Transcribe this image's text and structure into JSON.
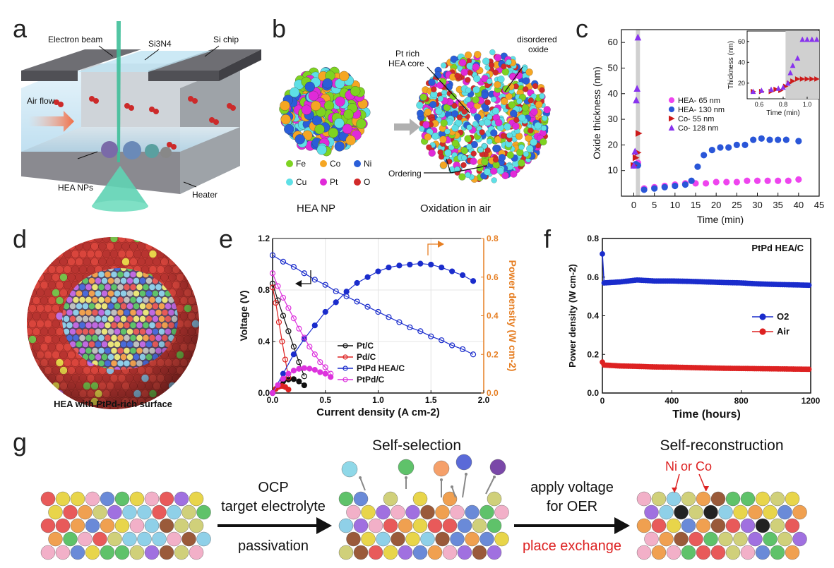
{
  "panels": {
    "a": "a",
    "b": "b",
    "c": "c",
    "d": "d",
    "e": "e",
    "f": "f",
    "g": "g"
  },
  "panel_a": {
    "electron_beam": "Electron beam",
    "si3n4": "Si3N4",
    "si_chip": "Si chip",
    "air_flow": "Air flow",
    "hea_nps": "HEA NPs",
    "heater": "Heater",
    "colors": {
      "chip": "#6e6e73",
      "glass": "#cde8f4",
      "beam": "#3fbf99",
      "particle": "#cc2a2a"
    }
  },
  "panel_b": {
    "caption_left": "HEA NP",
    "caption_right": "Oxidation in air",
    "label_core": "Pt rich HEA core",
    "label_oxide": "disordered oxide",
    "label_ordering": "Ordering",
    "legend": [
      {
        "name": "Fe",
        "color": "#7ed321"
      },
      {
        "name": "Co",
        "color": "#f5a623"
      },
      {
        "name": "Ni",
        "color": "#2a5ed8"
      },
      {
        "name": "Cu",
        "color": "#5ee0e6"
      },
      {
        "name": "Pt",
        "color": "#e02ad8"
      },
      {
        "name": "O",
        "color": "#d22a2a"
      }
    ]
  },
  "panel_d": {
    "caption": "HEA with PtPd-rich surface"
  },
  "chart_data": [
    {
      "id": "c",
      "type": "scatter",
      "xlabel": "Time (min)",
      "ylabel": "Oxide thickness (nm)",
      "xlim": [
        -3,
        45
      ],
      "ylim": [
        0,
        65
      ],
      "xticks": [
        0,
        5,
        10,
        15,
        20,
        25,
        30,
        35,
        40,
        45
      ],
      "yticks": [
        10,
        20,
        30,
        40,
        50,
        60
      ],
      "shaded_x": [
        0.5,
        1.5
      ],
      "series": [
        {
          "name": "HEA- 65 nm",
          "color": "#ee44ee",
          "marker": "circle",
          "points": [
            [
              0,
              12
            ],
            [
              0.5,
              12.5
            ],
            [
              1,
              13
            ],
            [
              2.5,
              3
            ],
            [
              5,
              3.5
            ],
            [
              7.5,
              4
            ],
            [
              10,
              4.5
            ],
            [
              12.5,
              5
            ],
            [
              15,
              5
            ],
            [
              17.5,
              5
            ],
            [
              20,
              5.5
            ],
            [
              22.5,
              5.5
            ],
            [
              25,
              5.5
            ],
            [
              27.5,
              6
            ],
            [
              30,
              6
            ],
            [
              32.5,
              6
            ],
            [
              35,
              6
            ],
            [
              37.5,
              6
            ],
            [
              40,
              6.5
            ]
          ]
        },
        {
          "name": "HEA- 130 nm",
          "color": "#2a56d8",
          "marker": "circle",
          "points": [
            [
              0,
              12
            ],
            [
              0.5,
              12.5
            ],
            [
              1,
              12
            ],
            [
              2.5,
              2.5
            ],
            [
              5,
              3
            ],
            [
              7.5,
              3.5
            ],
            [
              10,
              4
            ],
            [
              12.5,
              4.5
            ],
            [
              14,
              6
            ],
            [
              15.5,
              11.5
            ],
            [
              17,
              16
            ],
            [
              19,
              18
            ],
            [
              21,
              19
            ],
            [
              23,
              19
            ],
            [
              25,
              20
            ],
            [
              27,
              20
            ],
            [
              29,
              22
            ],
            [
              31,
              22.5
            ],
            [
              33,
              22
            ],
            [
              35,
              22
            ],
            [
              37,
              22
            ],
            [
              40,
              21.5
            ]
          ]
        },
        {
          "name": "Co- 55 nm",
          "color": "#cc1a1a",
          "marker": "triangle-right",
          "points": [
            [
              0,
              12
            ],
            [
              0.5,
              15
            ],
            [
              1,
              17
            ],
            [
              1.2,
              24.5
            ]
          ]
        },
        {
          "name": "Co- 128 nm",
          "color": "#8833ee",
          "marker": "triangle-up",
          "points": [
            [
              0,
              12
            ],
            [
              0.3,
              17.5
            ],
            [
              0.6,
              37.5
            ],
            [
              0.8,
              42
            ],
            [
              1,
              62
            ]
          ]
        }
      ],
      "inset": {
        "xlabel": "Time (min)",
        "ylabel": "Thickness (nm)",
        "xlim": [
          0.5,
          1.1
        ],
        "ylim": [
          5,
          70
        ],
        "xticks": [
          0.6,
          0.8,
          1.0
        ],
        "yticks": [
          20,
          40,
          60
        ],
        "series": [
          {
            "name": "Co- 55 nm",
            "color": "#cc1a1a",
            "marker": "triangle-right",
            "points": [
              [
                0.55,
                12
              ],
              [
                0.62,
                12
              ],
              [
                0.7,
                12
              ],
              [
                0.74,
                14
              ],
              [
                0.78,
                13
              ],
              [
                0.82,
                17
              ],
              [
                0.85,
                20
              ],
              [
                0.88,
                22
              ],
              [
                0.92,
                24
              ],
              [
                0.96,
                24
              ],
              [
                1.0,
                24
              ],
              [
                1.04,
                24
              ],
              [
                1.08,
                24
              ]
            ]
          },
          {
            "name": "Co- 128 nm",
            "color": "#8833ee",
            "marker": "triangle-up",
            "points": [
              [
                0.55,
                12
              ],
              [
                0.62,
                13
              ],
              [
                0.7,
                14
              ],
              [
                0.76,
                15
              ],
              [
                0.8,
                16
              ],
              [
                0.84,
                20
              ],
              [
                0.86,
                30
              ],
              [
                0.88,
                37
              ],
              [
                0.92,
                44
              ],
              [
                0.96,
                62
              ],
              [
                1.0,
                62
              ],
              [
                1.04,
                62
              ],
              [
                1.08,
                62
              ]
            ]
          }
        ]
      }
    },
    {
      "id": "e",
      "type": "line",
      "xlabel": "Current density (A cm-2)",
      "ylabel": "Voltage (V)",
      "y2label": "Power density (W cm-2)",
      "xlim": [
        0,
        2.0
      ],
      "ylim": [
        0,
        1.2
      ],
      "y2lim": [
        0,
        0.8
      ],
      "xticks": [
        0.0,
        0.5,
        1.0,
        1.5,
        2.0
      ],
      "yticks": [
        0.0,
        0.4,
        0.8,
        1.2
      ],
      "y2ticks": [
        0.0,
        0.2,
        0.4,
        0.6,
        0.8
      ],
      "series": [
        {
          "name": "Pt/C",
          "color": "#111111",
          "polarization": [
            [
              0,
              0.85
            ],
            [
              0.05,
              0.72
            ],
            [
              0.1,
              0.6
            ],
            [
              0.15,
              0.48
            ],
            [
              0.2,
              0.36
            ],
            [
              0.25,
              0.24
            ],
            [
              0.3,
              0.13
            ]
          ],
          "power": [
            [
              0,
              0
            ],
            [
              0.05,
              0.036
            ],
            [
              0.1,
              0.06
            ],
            [
              0.15,
              0.07
            ],
            [
              0.2,
              0.072
            ],
            [
              0.25,
              0.06
            ],
            [
              0.3,
              0.04
            ]
          ]
        },
        {
          "name": "Pd/C",
          "color": "#dd2222",
          "polarization": [
            [
              0,
              0.82
            ],
            [
              0.03,
              0.7
            ],
            [
              0.06,
              0.55
            ],
            [
              0.09,
              0.4
            ],
            [
              0.12,
              0.26
            ],
            [
              0.15,
              0.12
            ]
          ],
          "power": [
            [
              0,
              0
            ],
            [
              0.03,
              0.021
            ],
            [
              0.06,
              0.033
            ],
            [
              0.09,
              0.036
            ],
            [
              0.12,
              0.031
            ],
            [
              0.15,
              0.018
            ]
          ]
        },
        {
          "name": "PtPd HEA/C",
          "color": "#1a2ccc",
          "polarization": [
            [
              0,
              1.07
            ],
            [
              0.1,
              1.02
            ],
            [
              0.2,
              0.98
            ],
            [
              0.3,
              0.93
            ],
            [
              0.4,
              0.88
            ],
            [
              0.5,
              0.84
            ],
            [
              0.6,
              0.79
            ],
            [
              0.7,
              0.75
            ],
            [
              0.8,
              0.71
            ],
            [
              0.9,
              0.67
            ],
            [
              1.0,
              0.63
            ],
            [
              1.1,
              0.59
            ],
            [
              1.2,
              0.55
            ],
            [
              1.3,
              0.51
            ],
            [
              1.4,
              0.48
            ],
            [
              1.5,
              0.44
            ],
            [
              1.6,
              0.41
            ],
            [
              1.7,
              0.37
            ],
            [
              1.8,
              0.34
            ],
            [
              1.9,
              0.3
            ]
          ],
          "power": [
            [
              0,
              0
            ],
            [
              0.1,
              0.1
            ],
            [
              0.2,
              0.2
            ],
            [
              0.3,
              0.28
            ],
            [
              0.4,
              0.35
            ],
            [
              0.5,
              0.42
            ],
            [
              0.6,
              0.47
            ],
            [
              0.7,
              0.525
            ],
            [
              0.8,
              0.57
            ],
            [
              0.9,
              0.6
            ],
            [
              1.0,
              0.63
            ],
            [
              1.1,
              0.65
            ],
            [
              1.2,
              0.66
            ],
            [
              1.3,
              0.665
            ],
            [
              1.4,
              0.67
            ],
            [
              1.5,
              0.665
            ],
            [
              1.6,
              0.65
            ],
            [
              1.7,
              0.63
            ],
            [
              1.8,
              0.61
            ],
            [
              1.9,
              0.58
            ]
          ]
        },
        {
          "name": "PtPd/C",
          "color": "#dd33dd",
          "polarization": [
            [
              0,
              0.93
            ],
            [
              0.05,
              0.83
            ],
            [
              0.1,
              0.74
            ],
            [
              0.15,
              0.66
            ],
            [
              0.2,
              0.58
            ],
            [
              0.25,
              0.5
            ],
            [
              0.3,
              0.43
            ],
            [
              0.35,
              0.36
            ],
            [
              0.4,
              0.3
            ],
            [
              0.45,
              0.24
            ],
            [
              0.5,
              0.2
            ],
            [
              0.55,
              0.15
            ]
          ],
          "power": [
            [
              0,
              0
            ],
            [
              0.05,
              0.041
            ],
            [
              0.1,
              0.074
            ],
            [
              0.15,
              0.1
            ],
            [
              0.2,
              0.116
            ],
            [
              0.25,
              0.125
            ],
            [
              0.3,
              0.129
            ],
            [
              0.35,
              0.126
            ],
            [
              0.4,
              0.12
            ],
            [
              0.45,
              0.108
            ],
            [
              0.5,
              0.1
            ],
            [
              0.55,
              0.083
            ]
          ]
        }
      ]
    },
    {
      "id": "f",
      "type": "line",
      "xlabel": "Time (hours)",
      "ylabel": "Power density (W cm-2)",
      "title": "PtPd HEA/C",
      "xlim": [
        0,
        1200
      ],
      "ylim": [
        0,
        0.8
      ],
      "xticks": [
        0,
        400,
        800,
        1200
      ],
      "yticks": [
        0.0,
        0.2,
        0.4,
        0.6,
        0.8
      ],
      "series": [
        {
          "name": "O2",
          "color": "#1a2ccc",
          "points": [
            [
              0,
              0.72
            ],
            [
              10,
              0.57
            ],
            [
              100,
              0.575
            ],
            [
              200,
              0.585
            ],
            [
              300,
              0.58
            ],
            [
              400,
              0.58
            ],
            [
              500,
              0.578
            ],
            [
              600,
              0.575
            ],
            [
              700,
              0.572
            ],
            [
              800,
              0.57
            ],
            [
              900,
              0.565
            ],
            [
              1000,
              0.562
            ],
            [
              1100,
              0.56
            ],
            [
              1190,
              0.558
            ]
          ]
        },
        {
          "name": "Air",
          "color": "#dd2222",
          "points": [
            [
              0,
              0.16
            ],
            [
              10,
              0.145
            ],
            [
              100,
              0.14
            ],
            [
              200,
              0.138
            ],
            [
              300,
              0.135
            ],
            [
              400,
              0.134
            ],
            [
              500,
              0.132
            ],
            [
              600,
              0.13
            ],
            [
              700,
              0.128
            ],
            [
              800,
              0.127
            ],
            [
              900,
              0.126
            ],
            [
              1000,
              0.125
            ],
            [
              1100,
              0.124
            ],
            [
              1190,
              0.123
            ]
          ]
        }
      ]
    }
  ],
  "panel_e_text": {
    "tick_y2": [
      "0.0",
      "0.2",
      "0.4",
      "0.6",
      "0.8"
    ]
  },
  "panel_g": {
    "step1_top1": "OCP",
    "step1_top2": "target electrolyte",
    "step1_bottom": "passivation",
    "mid_title": "Self-selection",
    "step2_top1": "apply voltage",
    "step2_top2": "for OER",
    "step2_bottom": "place exchange",
    "right_title": "Self-reconstruction",
    "ni_co": "Ni or Co"
  }
}
